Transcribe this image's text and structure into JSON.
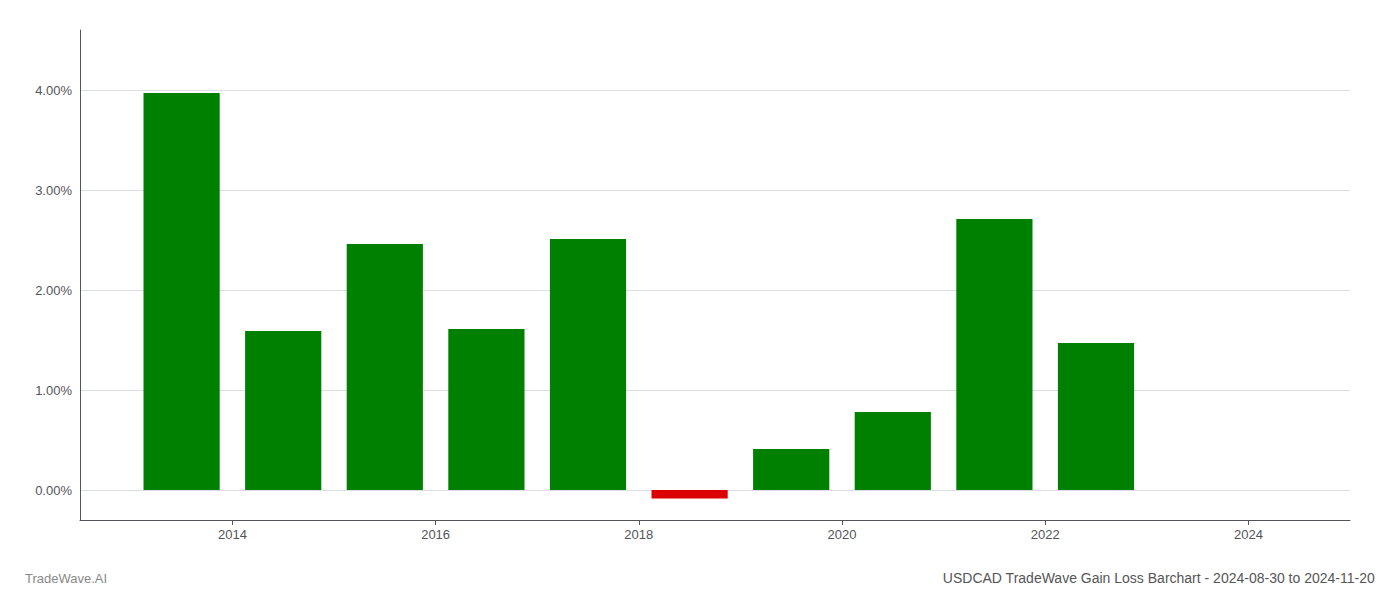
{
  "chart_data": {
    "type": "bar",
    "title": "USDCAD TradeWave Gain Loss Barchart - 2024-08-30 to 2024-11-20",
    "annotations": [
      "TradeWave.AI"
    ],
    "x": [
      2013.5,
      2014.5,
      2015.5,
      2016.5,
      2017.5,
      2018.5,
      2019.5,
      2020.5,
      2021.5,
      2022.5,
      2023.5
    ],
    "values": [
      0.0397,
      0.0159,
      0.0246,
      0.0161,
      0.0251,
      -0.00085,
      0.0041,
      0.0078,
      0.0271,
      0.0147,
      0.0
    ],
    "colors": [
      "#008000",
      "#008000",
      "#008000",
      "#008000",
      "#008000",
      "#dd0000",
      "#008000",
      "#008000",
      "#008000",
      "#008000",
      "#008000"
    ],
    "xlim": [
      2012.5,
      2025.0
    ],
    "xticks": [
      2014,
      2016,
      2018,
      2020,
      2022,
      2024
    ],
    "ylim": [
      -0.003,
      0.046
    ],
    "yticks": [
      {
        "value": 0.0,
        "label": "0.00%"
      },
      {
        "value": 0.01,
        "label": "1.00%"
      },
      {
        "value": 0.02,
        "label": "2.00%"
      },
      {
        "value": 0.03,
        "label": "3.00%"
      },
      {
        "value": 0.04,
        "label": "4.00%"
      }
    ],
    "grid": true
  }
}
